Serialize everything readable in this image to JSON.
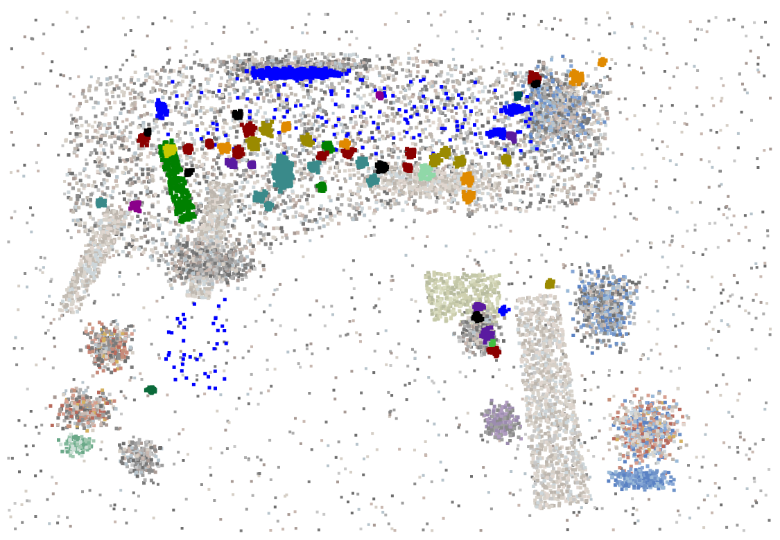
{
  "view": {
    "type": "3d-point-cloud-render",
    "background": "#ffffff"
  },
  "palette": {
    "scene_gray": [
      "#7a7a7a",
      "#8c8c8c",
      "#9e9e9e",
      "#6e6e6e",
      "#b0b0b0",
      "#c8c8c8",
      "#a89a94",
      "#c9b8b0",
      "#b7c4cc",
      "#d6cfc6"
    ],
    "scene_pale": [
      "#d9d4cc",
      "#c4bdb4",
      "#e0d6cf",
      "#cdd6da",
      "#bdb6ae"
    ],
    "warm_tint": [
      "#c98a7a",
      "#d8a090",
      "#b86a5c",
      "#d4b060",
      "#c4907a"
    ],
    "cool_tint": [
      "#6f93c9",
      "#5a82c4",
      "#86a6d6",
      "#9bbad8"
    ],
    "instance_colors": {
      "blue": "#0000ff",
      "green": "#008000",
      "olive": "#9a8a00",
      "teal": "#3a8a8a",
      "orange": "#e08a00",
      "dark_red": "#8b0000",
      "purple": "#5a1aa0",
      "magenta": "#8a008a",
      "black": "#000000",
      "yellow": "#c8c800",
      "dark_green": "#0a6a3a",
      "dark_teal": "#005050",
      "lime": "#40c040",
      "mint": "#90d8a8"
    }
  }
}
